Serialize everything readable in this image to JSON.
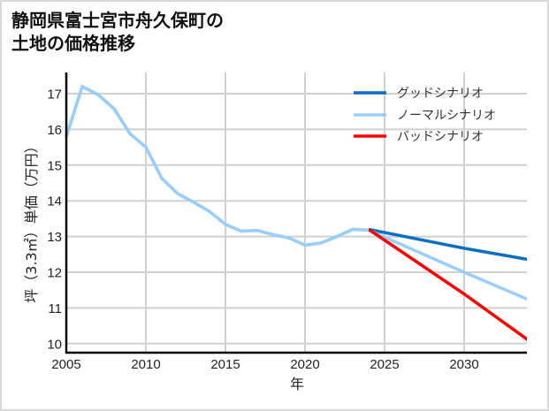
{
  "title_lines": [
    "静岡県富士宮市舟久保町の",
    "土地の価格推移"
  ],
  "colors": {
    "good": "#0b70c4",
    "normal": "#99cdfb",
    "bad": "#ff0000",
    "grid": "#d0d0d0",
    "axis": "#000000",
    "border": "#d9d9d9"
  },
  "chart_data": {
    "type": "line",
    "title": "静岡県富士宮市舟久保町の土地の価格推移",
    "xlabel": "年",
    "ylabel": "坪（3.3㎡）単価（万円）",
    "xlim": [
      2005,
      2034
    ],
    "ylim": [
      9.8,
      17.6
    ],
    "x_ticks": [
      2005,
      2010,
      2015,
      2020,
      2025,
      2030
    ],
    "y_ticks": [
      10,
      11,
      12,
      13,
      14,
      15,
      16,
      17
    ],
    "grid": true,
    "legend_position": "upper right",
    "series": [
      {
        "name": "グッドシナリオ",
        "color": "#0b70c4",
        "x": [
          2024,
          2030,
          2034
        ],
        "values": [
          13.2,
          12.67,
          12.36
        ]
      },
      {
        "name": "ノーマルシナリオ",
        "color": "#99cdfb",
        "x": [
          2005,
          2006,
          2007,
          2008,
          2009,
          2010,
          2011,
          2012,
          2013,
          2014,
          2015,
          2016,
          2017,
          2018,
          2019,
          2020,
          2021,
          2022,
          2023,
          2024,
          2030,
          2034
        ],
        "values": [
          15.8,
          17.2,
          16.97,
          16.58,
          15.88,
          15.5,
          14.63,
          14.2,
          13.96,
          13.7,
          13.34,
          13.15,
          13.17,
          13.05,
          12.96,
          12.76,
          12.82,
          13.0,
          13.2,
          13.18,
          12.0,
          11.24
        ]
      },
      {
        "name": "バッドシナリオ",
        "color": "#ff0000",
        "x": [
          2024,
          2030,
          2034
        ],
        "values": [
          13.2,
          11.39,
          10.11
        ]
      }
    ]
  }
}
